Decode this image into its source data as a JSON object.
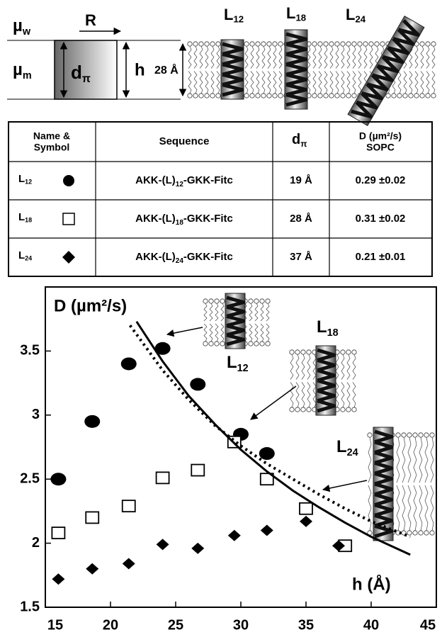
{
  "diagram": {
    "mu_w": {
      "main": "µ",
      "sub": "w"
    },
    "mu_m": {
      "main": "µ",
      "sub": "m"
    },
    "radius": "R",
    "d_pi": {
      "main": "d",
      "sub": "π"
    },
    "height": "h",
    "thickness": "28 Å",
    "peptides": [
      {
        "main": "L",
        "sub": "12"
      },
      {
        "main": "L",
        "sub": "18"
      },
      {
        "main": "L",
        "sub": "24"
      }
    ]
  },
  "table": {
    "header": [
      "Name & Symbol",
      "Sequence",
      {
        "main": "d",
        "sub": "π"
      },
      "D (µm²/s) SOPC"
    ],
    "rows": [
      [
        {
          "main": "L",
          "sub": "12"
        },
        [
          "AKK-(L)",
          "12",
          "-GKK-Fitc"
        ],
        "19 Å",
        "0.29 ±0.02"
      ],
      [
        {
          "main": "L",
          "sub": "18"
        },
        [
          "AKK-(L)",
          "18",
          "-GKK-Fitc"
        ],
        "28 Å",
        "0.31 ±0.02"
      ],
      [
        {
          "main": "L",
          "sub": "24"
        },
        [
          "AKK-(L)",
          "24",
          "-GKK-Fitc"
        ],
        "37 Å",
        "0.21 ±0.01"
      ]
    ]
  },
  "chart_data": {
    "type": "scatter",
    "ylabel": "D (µm²/s)",
    "xlabel": "h (Å)",
    "xlim": [
      15,
      45
    ],
    "xticks": [
      15,
      20,
      25,
      30,
      35,
      40,
      45
    ],
    "ylim": [
      1.5,
      4.0
    ],
    "yticks": [
      1.5,
      2,
      2.5,
      3,
      3.5
    ],
    "annotations": [
      {
        "main": "L",
        "sub": "12"
      },
      {
        "main": "L",
        "sub": "18"
      },
      {
        "main": "L",
        "sub": "24"
      }
    ],
    "series": [
      {
        "marker": "circle",
        "color": "#000000",
        "x": [
          16,
          18.6,
          21.4,
          24,
          26.7,
          30,
          32
        ],
        "values": [
          2.5,
          2.95,
          3.4,
          3.52,
          3.24,
          2.85,
          2.7
        ]
      },
      {
        "marker": "square",
        "color": "#000000",
        "x": [
          16,
          18.6,
          21.4,
          24,
          26.7,
          29.5,
          32,
          35,
          38
        ],
        "values": [
          2.08,
          2.2,
          2.29,
          2.51,
          2.57,
          2.79,
          2.5,
          2.27,
          1.98
        ]
      },
      {
        "marker": "diamond",
        "color": "#000000",
        "x": [
          16,
          18.6,
          21.4,
          24,
          26.7,
          29.5,
          32,
          35,
          37.5
        ],
        "values": [
          1.72,
          1.8,
          1.84,
          1.99,
          1.96,
          2.06,
          2.1,
          2.17,
          1.98
        ]
      },
      {
        "marker": "solid-line",
        "color": "#000000",
        "x": [
          22,
          24,
          26,
          28,
          30,
          32,
          34,
          36,
          38,
          40,
          43
        ],
        "values": [
          3.73,
          3.42,
          3.15,
          2.93,
          2.73,
          2.56,
          2.41,
          2.28,
          2.16,
          2.05,
          1.91
        ]
      },
      {
        "marker": "dashed-line",
        "color": "#000000",
        "x": [
          21.5,
          24,
          26,
          28,
          30,
          32,
          34,
          36,
          38,
          40,
          43
        ],
        "values": [
          3.7,
          3.35,
          3.12,
          2.92,
          2.76,
          2.62,
          2.5,
          2.38,
          2.27,
          2.17,
          2.05
        ]
      }
    ]
  }
}
